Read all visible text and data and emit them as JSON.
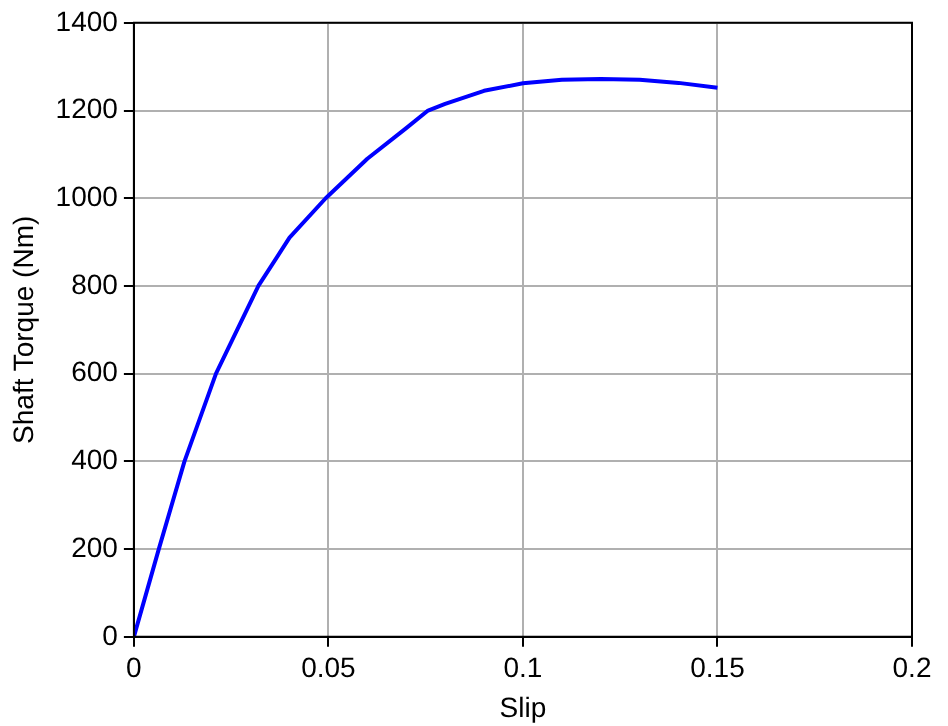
{
  "chart_data": {
    "type": "line",
    "xlabel": "Slip",
    "ylabel": "Shaft Torque (Nm)",
    "series": [
      {
        "color": "#0000ff",
        "x": [
          0,
          0.0064,
          0.013,
          0.0211,
          0.032,
          0.04,
          0.0493,
          0.06,
          0.07,
          0.0756,
          0.08,
          0.09,
          0.1,
          0.11,
          0.12,
          0.13,
          0.14,
          0.15
        ],
        "values": [
          0,
          200,
          400,
          600,
          800,
          910,
          1000,
          1090,
          1160,
          1200,
          1215,
          1245,
          1262,
          1270,
          1272,
          1270,
          1263,
          1252
        ]
      }
    ],
    "xlim": [
      0,
      0.2
    ],
    "xticks": [
      0,
      0.05,
      0.1,
      0.15,
      0.2
    ],
    "ylim": [
      0,
      1400
    ],
    "yticks": [
      0,
      200,
      400,
      600,
      800,
      1000,
      1200,
      1400
    ],
    "grid": true,
    "legend": false,
    "marker": "none",
    "line_style": "solid"
  }
}
